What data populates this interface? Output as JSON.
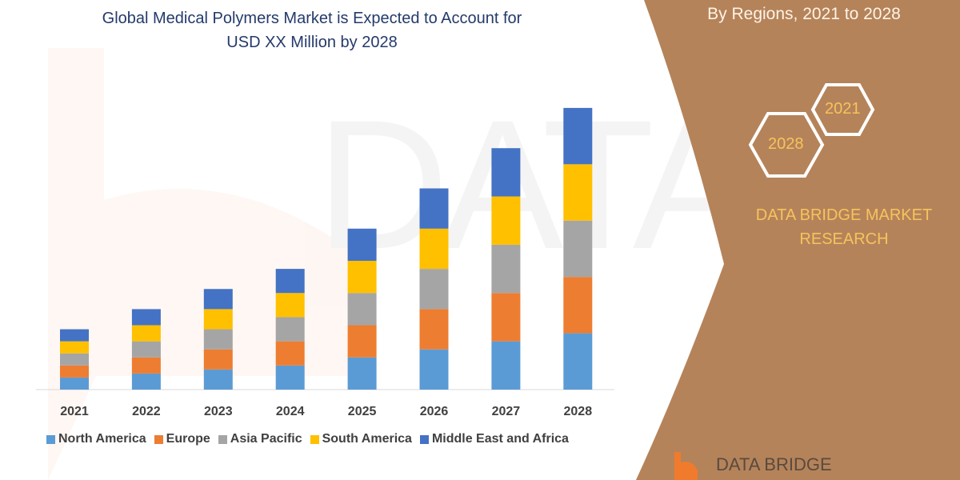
{
  "header": {
    "title_line1": "Global Medical Polymers Market is Expected to Account for",
    "title_line2": "USD XX Million by 2028"
  },
  "side_panel": {
    "subtitle": "By Regions, 2021 to 2028",
    "hex_years": [
      "2021",
      "2028"
    ],
    "brand_line1": "DATA BRIDGE MARKET",
    "brand_line2": "RESEARCH",
    "footer_logo_text": "DATA BRIDGE",
    "panel_color": "#b5835a",
    "accent_color": "#f7c35c"
  },
  "chart_data": {
    "type": "bar",
    "stacked": true,
    "title": "Global Medical Polymers Market is Expected to Account for USD XX Million by 2028",
    "xlabel": "",
    "ylabel": "",
    "y_axis_shown": false,
    "ylim": [
      0,
      350
    ],
    "grid": false,
    "legend_placement": "bottom",
    "categories": [
      "2021",
      "2022",
      "2023",
      "2024",
      "2025",
      "2026",
      "2027",
      "2028"
    ],
    "series": [
      {
        "name": "North America",
        "color": "#5b9bd5",
        "values": [
          15,
          20,
          25,
          30,
          40,
          50,
          60,
          70
        ]
      },
      {
        "name": "Europe",
        "color": "#ed7d31",
        "values": [
          15,
          20,
          25,
          30,
          40,
          50,
          60,
          70
        ]
      },
      {
        "name": "Asia Pacific",
        "color": "#a5a5a5",
        "values": [
          15,
          20,
          25,
          30,
          40,
          50,
          60,
          70
        ]
      },
      {
        "name": "South America",
        "color": "#ffc000",
        "values": [
          15,
          20,
          25,
          30,
          40,
          50,
          60,
          70
        ]
      },
      {
        "name": "Middle East and Africa",
        "color": "#4472c4",
        "values": [
          15,
          20,
          25,
          30,
          40,
          50,
          60,
          70
        ]
      }
    ]
  }
}
